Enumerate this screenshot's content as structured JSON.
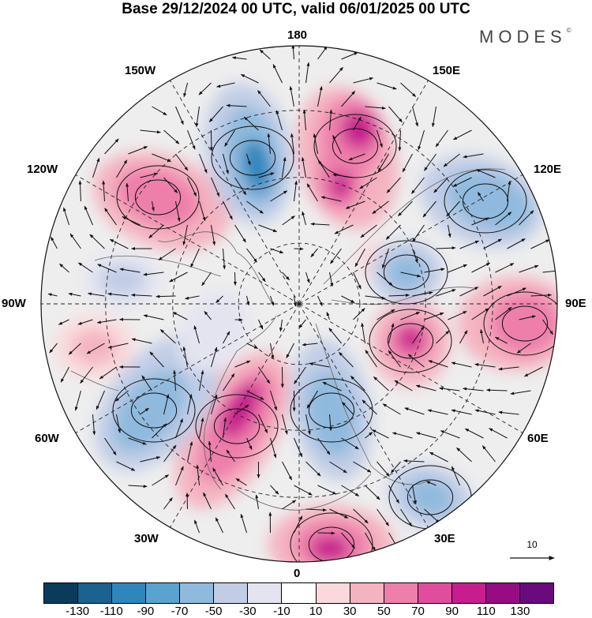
{
  "title": "Base 29/12/2024 00 UTC, valid 06/01/2025 00 UTC",
  "brand": "MODES",
  "brand_mark": "©",
  "longitude_labels": {
    "top": "180",
    "bottom": "0",
    "left": "90W",
    "right": "90E",
    "upper_left": "150W",
    "upper_right": "150E",
    "mid_upper_left": "120W",
    "mid_upper_right": "120E",
    "mid_lower_left": "60W",
    "mid_lower_right": "60E",
    "lower_left": "30W",
    "lower_right": "30E"
  },
  "reference_vector": {
    "label": "10"
  },
  "colorbar": {
    "colors": [
      "#0b3b5c",
      "#1a628f",
      "#2f86bd",
      "#5aa3d0",
      "#8fbade",
      "#c1cde6",
      "#e4e4f1",
      "#ffffff",
      "#f9d9dc",
      "#f4b3c1",
      "#ee7fab",
      "#e14d9d",
      "#c81d8e",
      "#970c82",
      "#6a0a7c"
    ],
    "tick_labels": [
      "-130",
      "-110",
      "-90",
      "-70",
      "-50",
      "-30",
      "-10",
      "10",
      "30",
      "50",
      "70",
      "90",
      "110",
      "130"
    ]
  },
  "map": {
    "projection": "north-polar-stereographic",
    "field_colors": {
      "strong_positive": "#c81d8e",
      "positive": "#ee7fab",
      "weak_positive": "#f4b3c1",
      "faint_positive": "#f9d9dc",
      "neutral": "#ececec",
      "faint_negative": "#e4e4f1",
      "weak_negative": "#c1cde6",
      "negative": "#8fbade",
      "strong_negative": "#2f86bd"
    }
  }
}
